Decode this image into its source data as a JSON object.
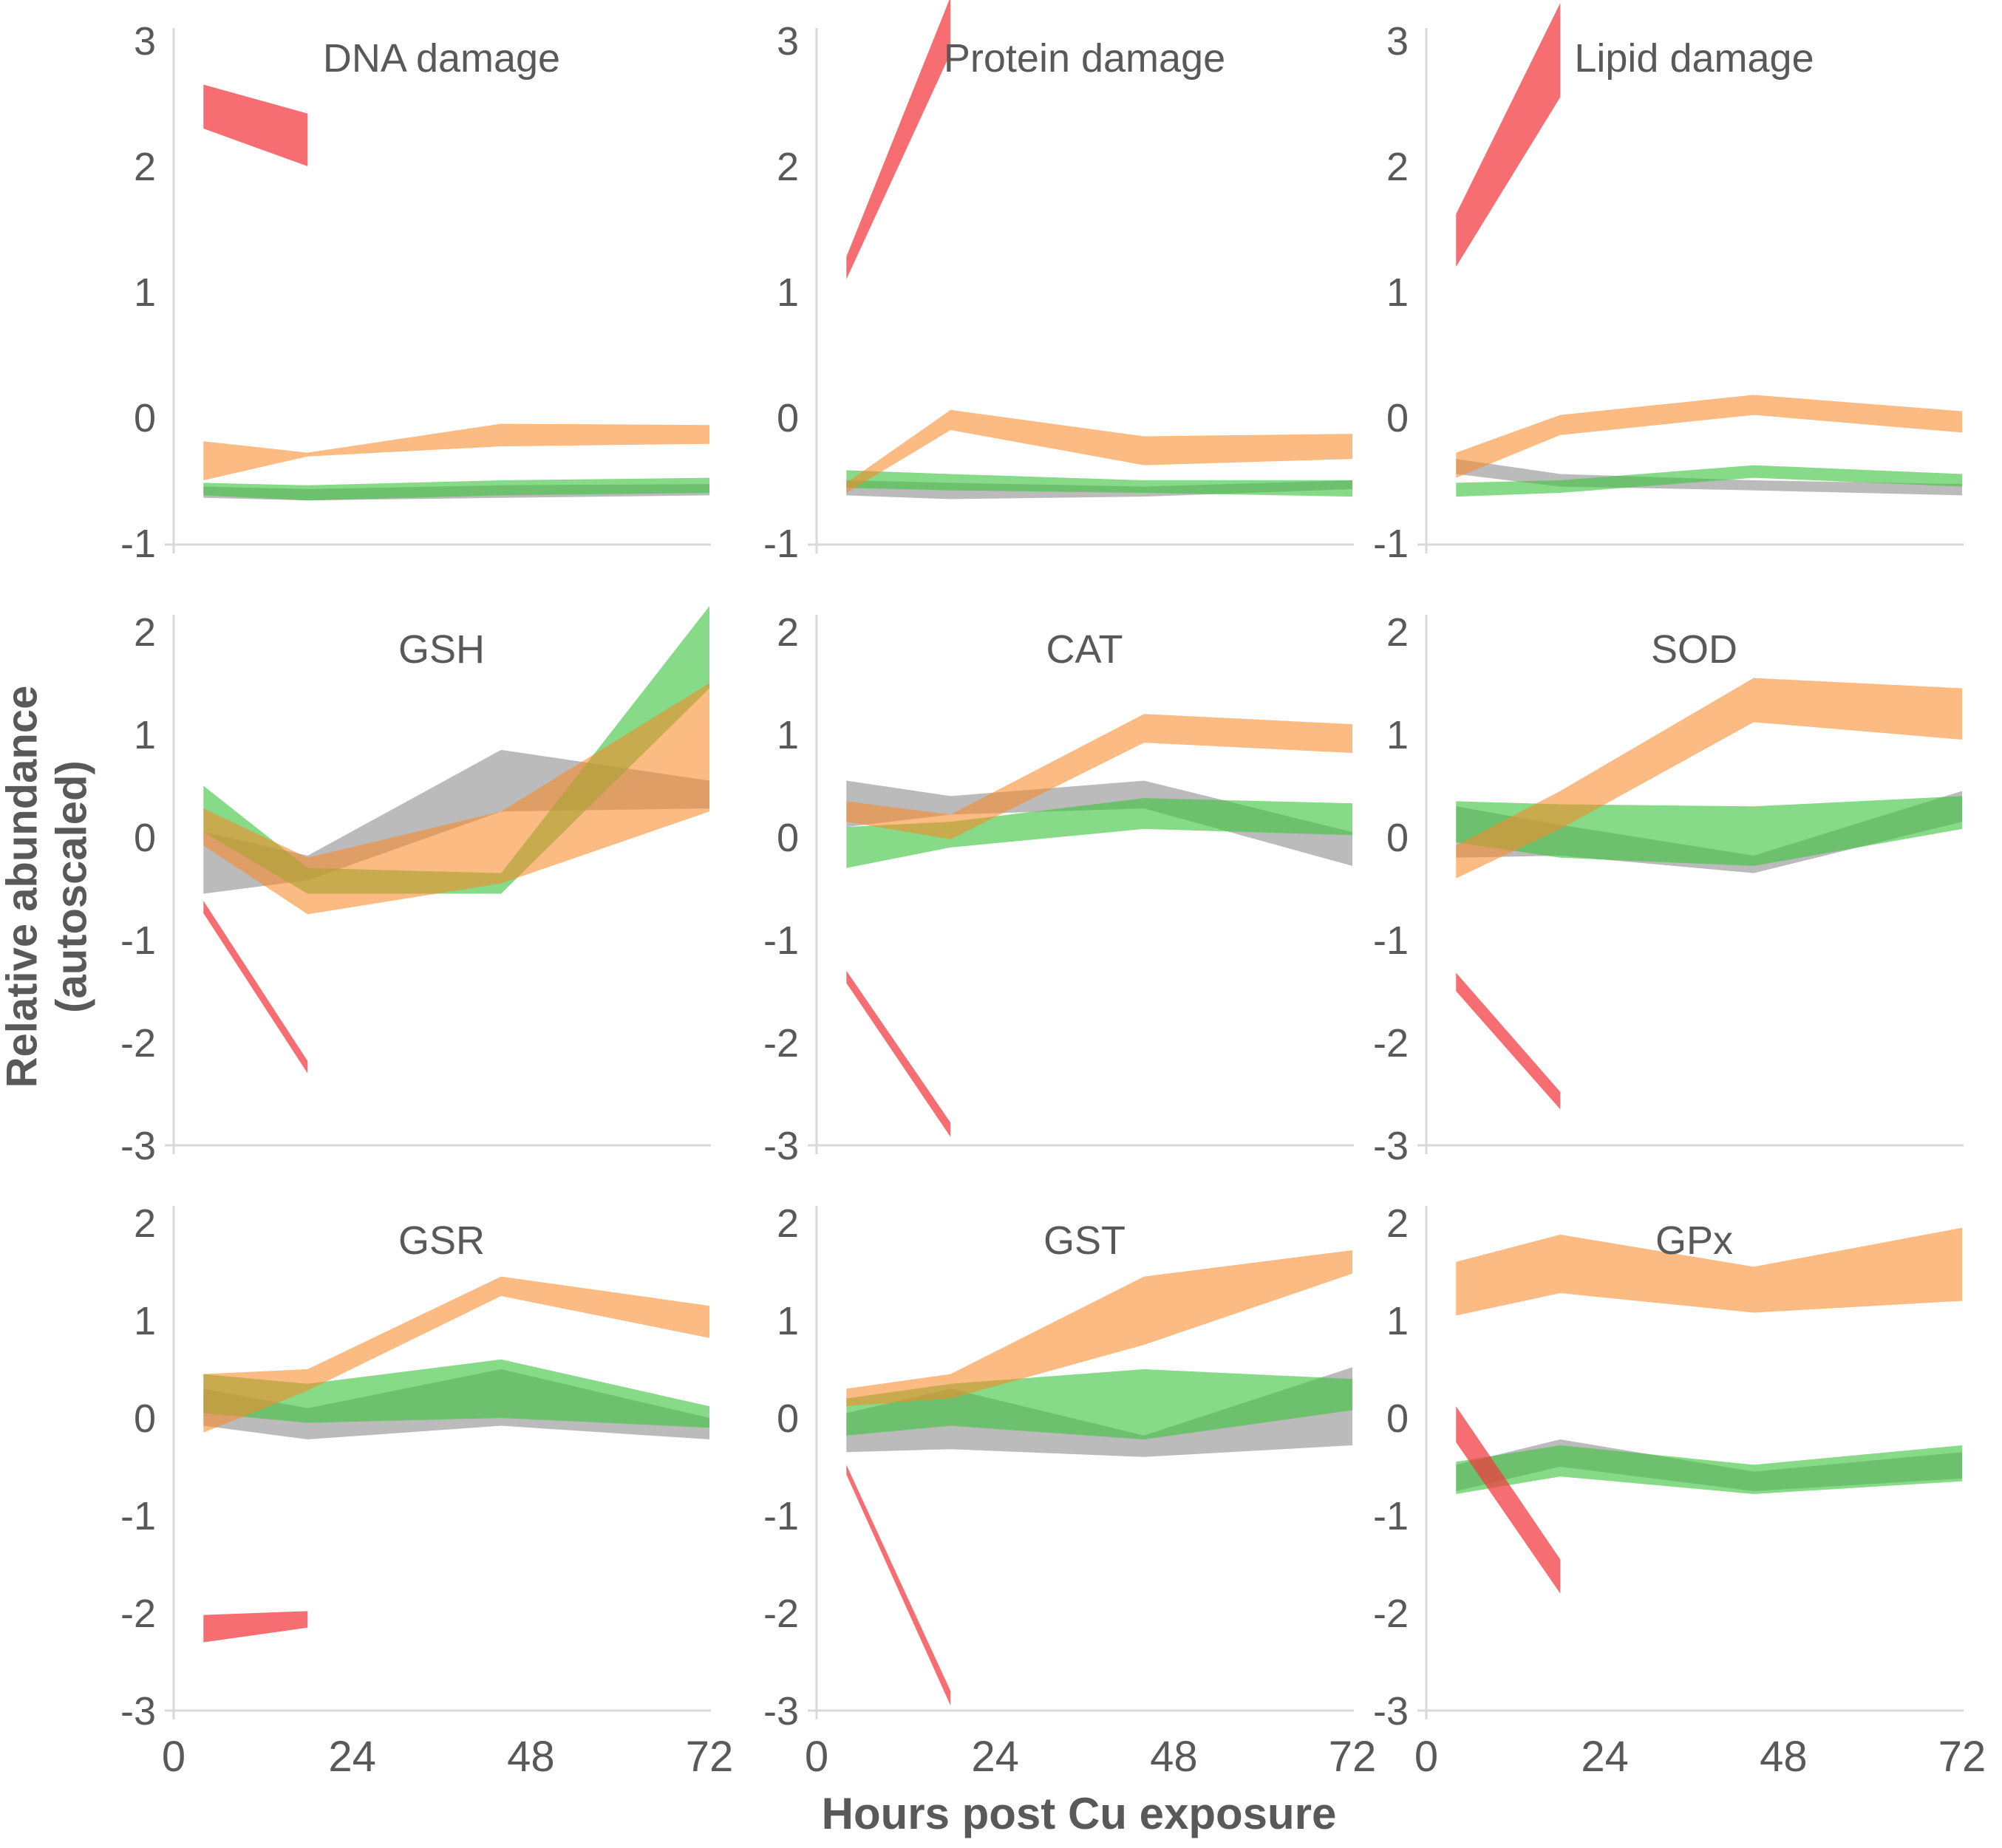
{
  "figure": {
    "background": "#FFFFFF"
  },
  "axes": {
    "x_label": "Hours post Cu exposure",
    "y_label_line1": "Relative abundance",
    "y_label_line2": "(autoscaled)",
    "x_ticks": [
      0,
      24,
      48,
      72
    ],
    "xlim": [
      0,
      72
    ],
    "grid": "off",
    "legend": "none",
    "text_color": "#595959",
    "axis_color": "#D9D9D9"
  },
  "colors": {
    "red": "rgba(244,54,60,0.72)",
    "orange": "rgba(248,137,40,0.58)",
    "green": "rgba(62,195,62,0.62)",
    "gray": "rgba(125,125,125,0.52)"
  },
  "chart_data": [
    {
      "type": "area",
      "title": "DNA damage",
      "row": 0,
      "col": 0,
      "ylim": [
        -1,
        3
      ],
      "yticks": [
        3,
        2,
        1,
        0,
        -1
      ],
      "show_x_ticks": false,
      "series": [
        {
          "name": "gray-series",
          "color": "gray",
          "x": [
            4,
            18,
            44,
            72
          ],
          "upper": [
            -0.55,
            -0.57,
            -0.54,
            -0.53
          ],
          "lower": [
            -0.64,
            -0.66,
            -0.64,
            -0.62
          ]
        },
        {
          "name": "green-series",
          "color": "green",
          "x": [
            4,
            18,
            44,
            72
          ],
          "upper": [
            -0.52,
            -0.54,
            -0.5,
            -0.48
          ],
          "lower": [
            -0.62,
            -0.66,
            -0.62,
            -0.6
          ]
        },
        {
          "name": "orange-series",
          "color": "orange",
          "x": [
            4,
            18,
            44,
            72
          ],
          "upper": [
            -0.19,
            -0.28,
            -0.05,
            -0.06
          ],
          "lower": [
            -0.5,
            -0.31,
            -0.23,
            -0.21
          ]
        },
        {
          "name": "red-series",
          "color": "red",
          "x": [
            4,
            18
          ],
          "upper": [
            2.65,
            2.42
          ],
          "lower": [
            2.3,
            2.0
          ]
        }
      ]
    },
    {
      "type": "area",
      "title": "Protein damage",
      "row": 0,
      "col": 1,
      "ylim": [
        -1,
        3
      ],
      "yticks": [
        3,
        2,
        1,
        0,
        -1
      ],
      "show_x_ticks": false,
      "series": [
        {
          "name": "gray-series",
          "color": "gray",
          "x": [
            4,
            18,
            44,
            72
          ],
          "upper": [
            -0.5,
            -0.52,
            -0.55,
            -0.5
          ],
          "lower": [
            -0.62,
            -0.65,
            -0.63,
            -0.57
          ]
        },
        {
          "name": "green-series",
          "color": "green",
          "x": [
            4,
            18,
            44,
            72
          ],
          "upper": [
            -0.42,
            -0.45,
            -0.5,
            -0.5
          ],
          "lower": [
            -0.56,
            -0.58,
            -0.6,
            -0.63
          ]
        },
        {
          "name": "orange-series",
          "color": "orange",
          "x": [
            4,
            18,
            44,
            72
          ],
          "upper": [
            -0.52,
            0.06,
            -0.15,
            -0.13
          ],
          "lower": [
            -0.6,
            -0.1,
            -0.38,
            -0.33
          ]
        },
        {
          "name": "red-series",
          "color": "red",
          "x": [
            4,
            18
          ],
          "upper": [
            1.28,
            3.35
          ],
          "lower": [
            1.1,
            2.9
          ]
        }
      ]
    },
    {
      "type": "area",
      "title": "Lipid damage",
      "row": 0,
      "col": 2,
      "ylim": [
        -1,
        3
      ],
      "yticks": [
        3,
        2,
        1,
        0,
        -1
      ],
      "show_x_ticks": false,
      "series": [
        {
          "name": "gray-series",
          "color": "gray",
          "x": [
            4,
            18,
            44,
            72
          ],
          "upper": [
            -0.33,
            -0.45,
            -0.5,
            -0.53
          ],
          "lower": [
            -0.45,
            -0.55,
            -0.58,
            -0.62
          ]
        },
        {
          "name": "green-series",
          "color": "green",
          "x": [
            4,
            18,
            44,
            72
          ],
          "upper": [
            -0.52,
            -0.5,
            -0.38,
            -0.45
          ],
          "lower": [
            -0.63,
            -0.6,
            -0.48,
            -0.55
          ]
        },
        {
          "name": "orange-series",
          "color": "orange",
          "x": [
            4,
            18,
            44,
            72
          ],
          "upper": [
            -0.28,
            0.02,
            0.18,
            0.05
          ],
          "lower": [
            -0.48,
            -0.14,
            0.02,
            -0.12
          ]
        },
        {
          "name": "red-series",
          "color": "red",
          "x": [
            4,
            18
          ],
          "upper": [
            1.62,
            3.3
          ],
          "lower": [
            1.2,
            2.55
          ]
        }
      ]
    },
    {
      "type": "area",
      "title": "GSH",
      "row": 1,
      "col": 0,
      "ylim": [
        -3,
        2
      ],
      "yticks": [
        2,
        1,
        0,
        -1,
        -2,
        -3
      ],
      "show_x_ticks": false,
      "series": [
        {
          "name": "gray-series",
          "color": "gray",
          "x": [
            4,
            18,
            44,
            72
          ],
          "upper": [
            0.05,
            -0.18,
            0.85,
            0.55
          ],
          "lower": [
            -0.55,
            -0.42,
            0.25,
            0.28
          ]
        },
        {
          "name": "green-series",
          "color": "green",
          "x": [
            4,
            18,
            44,
            72
          ],
          "upper": [
            0.5,
            -0.3,
            -0.35,
            2.25
          ],
          "lower": [
            0.05,
            -0.55,
            -0.55,
            1.45
          ]
        },
        {
          "name": "orange-series",
          "color": "orange",
          "x": [
            4,
            18,
            44,
            72
          ],
          "upper": [
            0.28,
            -0.2,
            0.25,
            1.5
          ],
          "lower": [
            -0.08,
            -0.75,
            -0.45,
            0.25
          ]
        },
        {
          "name": "red-series",
          "color": "red",
          "x": [
            4,
            18
          ],
          "upper": [
            -0.62,
            -2.18
          ],
          "lower": [
            -0.74,
            -2.3
          ]
        }
      ]
    },
    {
      "type": "area",
      "title": "CAT",
      "row": 1,
      "col": 1,
      "ylim": [
        -3,
        2
      ],
      "yticks": [
        2,
        1,
        0,
        -1,
        -2,
        -3
      ],
      "show_x_ticks": false,
      "series": [
        {
          "name": "gray-series",
          "color": "gray",
          "x": [
            4,
            18,
            44,
            72
          ],
          "upper": [
            0.55,
            0.4,
            0.55,
            0.05
          ],
          "lower": [
            0.1,
            0.22,
            0.28,
            -0.28
          ]
        },
        {
          "name": "green-series",
          "color": "green",
          "x": [
            4,
            18,
            44,
            72
          ],
          "upper": [
            0.1,
            0.15,
            0.38,
            0.33
          ],
          "lower": [
            -0.3,
            -0.1,
            0.08,
            0.02
          ]
        },
        {
          "name": "orange-series",
          "color": "orange",
          "x": [
            4,
            18,
            44,
            72
          ],
          "upper": [
            0.35,
            0.22,
            1.2,
            1.1
          ],
          "lower": [
            0.15,
            -0.02,
            0.92,
            0.82
          ]
        },
        {
          "name": "red-series",
          "color": "red",
          "x": [
            4,
            18
          ],
          "upper": [
            -1.3,
            -2.78
          ],
          "lower": [
            -1.42,
            -2.92
          ]
        }
      ]
    },
    {
      "type": "area",
      "title": "SOD",
      "row": 1,
      "col": 2,
      "ylim": [
        -3,
        2
      ],
      "yticks": [
        2,
        1,
        0,
        -1,
        -2,
        -3
      ],
      "show_x_ticks": false,
      "series": [
        {
          "name": "gray-series",
          "color": "gray",
          "x": [
            4,
            18,
            44,
            72
          ],
          "upper": [
            0.3,
            0.12,
            -0.18,
            0.45
          ],
          "lower": [
            -0.2,
            -0.18,
            -0.35,
            0.15
          ]
        },
        {
          "name": "green-series",
          "color": "green",
          "x": [
            4,
            18,
            44,
            72
          ],
          "upper": [
            0.35,
            0.32,
            0.3,
            0.4
          ],
          "lower": [
            -0.05,
            -0.2,
            -0.28,
            0.08
          ]
        },
        {
          "name": "orange-series",
          "color": "orange",
          "x": [
            4,
            18,
            44,
            72
          ],
          "upper": [
            -0.08,
            0.45,
            1.55,
            1.45
          ],
          "lower": [
            -0.4,
            0.08,
            1.12,
            0.95
          ]
        },
        {
          "name": "red-series",
          "color": "red",
          "x": [
            4,
            18
          ],
          "upper": [
            -1.32,
            -2.48
          ],
          "lower": [
            -1.5,
            -2.65
          ]
        }
      ]
    },
    {
      "type": "area",
      "title": "GSR",
      "row": 2,
      "col": 0,
      "ylim": [
        -3,
        2
      ],
      "yticks": [
        2,
        1,
        0,
        -1,
        -2,
        -3
      ],
      "show_x_ticks": true,
      "series": [
        {
          "name": "gray-series",
          "color": "gray",
          "x": [
            4,
            18,
            44,
            72
          ],
          "upper": [
            0.3,
            0.1,
            0.5,
            0.0
          ],
          "lower": [
            -0.08,
            -0.22,
            -0.08,
            -0.22
          ]
        },
        {
          "name": "green-series",
          "color": "green",
          "x": [
            4,
            18,
            44,
            72
          ],
          "upper": [
            0.45,
            0.35,
            0.6,
            0.12
          ],
          "lower": [
            0.05,
            -0.05,
            0.0,
            -0.1
          ]
        },
        {
          "name": "orange-series",
          "color": "orange",
          "x": [
            4,
            18,
            44,
            72
          ],
          "upper": [
            0.45,
            0.5,
            1.45,
            1.15
          ],
          "lower": [
            -0.15,
            0.28,
            1.25,
            0.82
          ]
        },
        {
          "name": "red-series",
          "color": "red",
          "x": [
            4,
            18
          ],
          "upper": [
            -2.02,
            -1.98
          ],
          "lower": [
            -2.3,
            -2.15
          ]
        }
      ]
    },
    {
      "type": "area",
      "title": "GST",
      "row": 2,
      "col": 1,
      "ylim": [
        -3,
        2
      ],
      "yticks": [
        2,
        1,
        0,
        -1,
        -2,
        -3
      ],
      "show_x_ticks": true,
      "series": [
        {
          "name": "gray-series",
          "color": "gray",
          "x": [
            4,
            18,
            44,
            72
          ],
          "upper": [
            0.05,
            0.3,
            -0.18,
            0.52
          ],
          "lower": [
            -0.35,
            -0.32,
            -0.4,
            -0.28
          ]
        },
        {
          "name": "green-series",
          "color": "green",
          "x": [
            4,
            18,
            44,
            72
          ],
          "upper": [
            0.2,
            0.35,
            0.5,
            0.4
          ],
          "lower": [
            -0.18,
            -0.08,
            -0.22,
            0.08
          ]
        },
        {
          "name": "orange-series",
          "color": "orange",
          "x": [
            4,
            18,
            44,
            72
          ],
          "upper": [
            0.3,
            0.45,
            1.45,
            1.72
          ],
          "lower": [
            0.12,
            0.2,
            0.75,
            1.48
          ]
        },
        {
          "name": "red-series",
          "color": "red",
          "x": [
            4,
            18
          ],
          "upper": [
            -0.48,
            -2.8
          ],
          "lower": [
            -0.58,
            -2.95
          ]
        }
      ]
    },
    {
      "type": "area",
      "title": "GPx",
      "row": 2,
      "col": 2,
      "ylim": [
        -3,
        2
      ],
      "yticks": [
        2,
        1,
        0,
        -1,
        -2,
        -3
      ],
      "show_x_ticks": true,
      "series": [
        {
          "name": "gray-series",
          "color": "gray",
          "x": [
            4,
            18,
            44,
            72
          ],
          "upper": [
            -0.48,
            -0.22,
            -0.55,
            -0.35
          ],
          "lower": [
            -0.75,
            -0.5,
            -0.75,
            -0.62
          ]
        },
        {
          "name": "green-series",
          "color": "green",
          "x": [
            4,
            18,
            44,
            72
          ],
          "upper": [
            -0.45,
            -0.28,
            -0.48,
            -0.28
          ],
          "lower": [
            -0.78,
            -0.6,
            -0.78,
            -0.65
          ]
        },
        {
          "name": "orange-series",
          "color": "orange",
          "x": [
            4,
            18,
            44,
            72
          ],
          "upper": [
            1.6,
            1.88,
            1.55,
            1.95
          ],
          "lower": [
            1.05,
            1.28,
            1.08,
            1.2
          ]
        },
        {
          "name": "red-series",
          "color": "red",
          "x": [
            4,
            18
          ],
          "upper": [
            0.12,
            -1.45
          ],
          "lower": [
            -0.25,
            -1.8
          ]
        }
      ]
    }
  ]
}
